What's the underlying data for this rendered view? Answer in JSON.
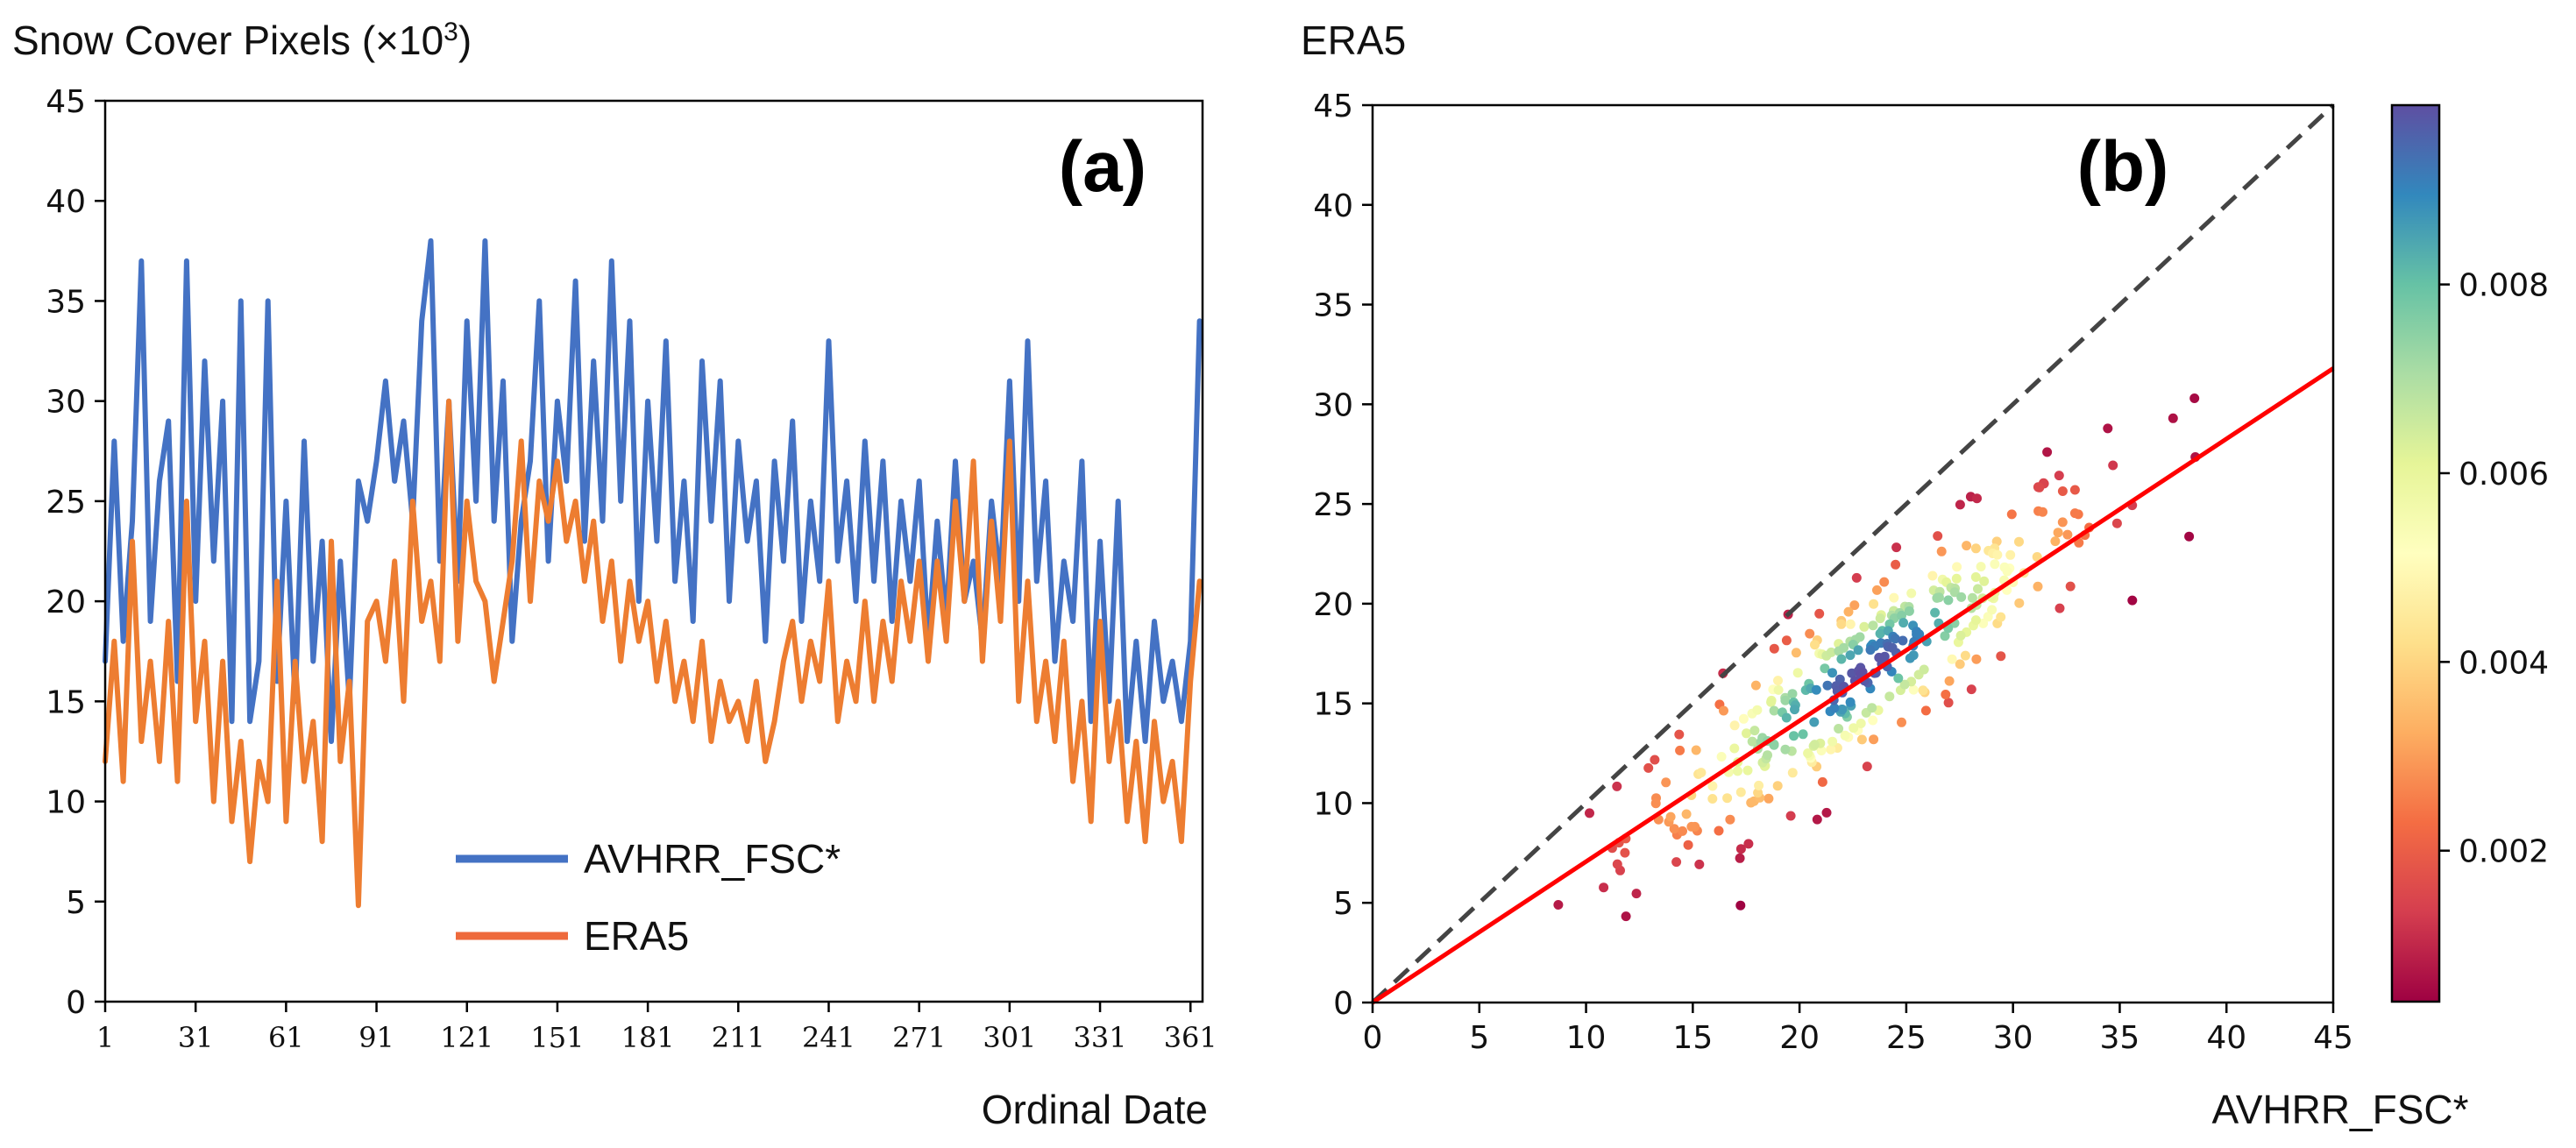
{
  "colors": {
    "avhrr": "#4472c4",
    "era5": "#ed7d31",
    "fit_line": "#ff0000",
    "one_to_one": "#444444",
    "legend_era5": "#ee6a3c"
  },
  "chart_data": [
    {
      "type": "line",
      "panel": "(a)",
      "ylabel": "Snow Cover Pixels (×10",
      "ylabel_sup": "3",
      "ylabel_close": ")",
      "xlabel": "Ordinal Date",
      "xlim": [
        1,
        365
      ],
      "ylim": [
        0,
        45
      ],
      "x_ticks": [
        "1",
        "31",
        "61",
        "91",
        "121",
        "151",
        "181",
        "211",
        "241",
        "271",
        "301",
        "331",
        "361"
      ],
      "y_ticks": [
        "0",
        "5",
        "10",
        "15",
        "20",
        "25",
        "30",
        "35",
        "40",
        "45"
      ],
      "legend": [
        "AVHRR_FSC*",
        "ERA5"
      ],
      "legend_position": "bottom-center",
      "series": [
        {
          "name": "AVHRR_FSC*",
          "x": [
            1,
            4,
            7,
            10,
            13,
            16,
            19,
            22,
            25,
            28,
            31,
            34,
            37,
            40,
            43,
            46,
            49,
            52,
            55,
            58,
            61,
            64,
            67,
            70,
            73,
            76,
            79,
            82,
            85,
            88,
            91,
            94,
            97,
            100,
            103,
            106,
            109,
            112,
            115,
            118,
            121,
            124,
            127,
            130,
            133,
            136,
            139,
            142,
            145,
            148,
            151,
            154,
            157,
            160,
            163,
            166,
            169,
            172,
            175,
            178,
            181,
            184,
            187,
            190,
            193,
            196,
            199,
            202,
            205,
            208,
            211,
            214,
            217,
            220,
            223,
            226,
            229,
            232,
            235,
            238,
            241,
            244,
            247,
            250,
            253,
            256,
            259,
            262,
            265,
            268,
            271,
            274,
            277,
            280,
            283,
            286,
            289,
            292,
            295,
            298,
            301,
            304,
            307,
            310,
            313,
            316,
            319,
            322,
            325,
            328,
            331,
            334,
            337,
            340,
            343,
            346,
            349,
            352,
            355,
            358,
            361,
            364
          ],
          "values": [
            17,
            28,
            18,
            24,
            37,
            19,
            26,
            29,
            16,
            37,
            20,
            32,
            22,
            30,
            14,
            35,
            14,
            17,
            35,
            16,
            25,
            15,
            28,
            17,
            23,
            13,
            22,
            15,
            26,
            24,
            27,
            31,
            26,
            29,
            24,
            34,
            38,
            22,
            30,
            21,
            34,
            25,
            38,
            24,
            31,
            18,
            24,
            27,
            35,
            22,
            30,
            26,
            36,
            23,
            32,
            24,
            37,
            25,
            34,
            20,
            30,
            23,
            33,
            21,
            26,
            19,
            32,
            24,
            31,
            20,
            28,
            23,
            26,
            18,
            27,
            22,
            29,
            19,
            25,
            21,
            33,
            22,
            26,
            20,
            28,
            21,
            27,
            19,
            25,
            21,
            26,
            18,
            24,
            19,
            27,
            20,
            22,
            18,
            25,
            21,
            31,
            20,
            33,
            21,
            26,
            17,
            22,
            19,
            27,
            14,
            23,
            15,
            25,
            13,
            18,
            13,
            19,
            15,
            17,
            14,
            18,
            34
          ]
        },
        {
          "name": "ERA5",
          "x": [
            1,
            4,
            7,
            10,
            13,
            16,
            19,
            22,
            25,
            28,
            31,
            34,
            37,
            40,
            43,
            46,
            49,
            52,
            55,
            58,
            61,
            64,
            67,
            70,
            73,
            76,
            79,
            82,
            85,
            88,
            91,
            94,
            97,
            100,
            103,
            106,
            109,
            112,
            115,
            118,
            121,
            124,
            127,
            130,
            133,
            136,
            139,
            142,
            145,
            148,
            151,
            154,
            157,
            160,
            163,
            166,
            169,
            172,
            175,
            178,
            181,
            184,
            187,
            190,
            193,
            196,
            199,
            202,
            205,
            208,
            211,
            214,
            217,
            220,
            223,
            226,
            229,
            232,
            235,
            238,
            241,
            244,
            247,
            250,
            253,
            256,
            259,
            262,
            265,
            268,
            271,
            274,
            277,
            280,
            283,
            286,
            289,
            292,
            295,
            298,
            301,
            304,
            307,
            310,
            313,
            316,
            319,
            322,
            325,
            328,
            331,
            334,
            337,
            340,
            343,
            346,
            349,
            352,
            355,
            358,
            361,
            364
          ],
          "values": [
            12,
            18,
            11,
            23,
            13,
            17,
            12,
            19,
            11,
            25,
            14,
            18,
            10,
            17,
            9,
            13,
            7,
            12,
            10,
            21,
            9,
            17,
            11,
            14,
            8,
            23,
            12,
            16,
            4.8,
            19,
            20,
            17,
            22,
            15,
            25,
            19,
            21,
            17,
            30,
            18,
            25,
            21,
            20,
            16,
            19,
            22,
            28,
            20,
            26,
            24,
            27,
            23,
            25,
            21,
            24,
            19,
            22,
            17,
            21,
            18,
            20,
            16,
            19,
            15,
            17,
            14,
            18,
            13,
            16,
            14,
            15,
            13,
            16,
            12,
            14,
            17,
            19,
            15,
            18,
            16,
            21,
            14,
            17,
            15,
            20,
            15,
            19,
            16,
            21,
            18,
            22,
            17,
            22,
            18,
            25,
            20,
            27,
            17,
            24,
            19,
            28,
            15,
            21,
            14,
            17,
            13,
            18,
            11,
            15,
            9,
            19,
            12,
            15,
            9,
            13,
            8,
            14,
            10,
            12,
            8,
            16,
            21
          ]
        }
      ]
    },
    {
      "type": "scatter",
      "panel": "(b)",
      "ylabel": "ERA5",
      "xlabel": "AVHRR_FSC*",
      "xlim": [
        0,
        45
      ],
      "ylim": [
        0,
        45
      ],
      "x_ticks": [
        "0",
        "5",
        "10",
        "15",
        "20",
        "25",
        "30",
        "35",
        "40",
        "45"
      ],
      "y_ticks": [
        "0",
        "5",
        "10",
        "15",
        "20",
        "25",
        "30",
        "35",
        "40",
        "45"
      ],
      "one_to_one_line": {
        "x": [
          0,
          45
        ],
        "y": [
          0,
          45
        ],
        "style": "dashed"
      },
      "fit_line": {
        "x": [
          0,
          45
        ],
        "y": [
          0,
          31.8
        ]
      },
      "colorbar": {
        "range": [
          0.0004,
          0.0099
        ],
        "ticks": [
          "0.002",
          "0.004",
          "0.006",
          "0.008"
        ],
        "tick_values": [
          0.002,
          0.004,
          0.006,
          0.008
        ],
        "colormap": "Spectral"
      },
      "points_note": "point density coloured; regenerated from cluster description",
      "points": {
        "x": [],
        "y": [],
        "density": []
      }
    }
  ]
}
